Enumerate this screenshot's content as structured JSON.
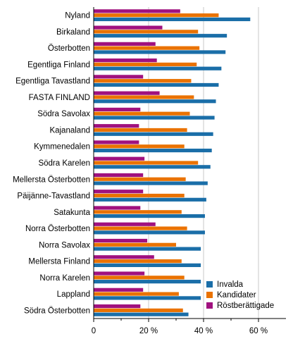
{
  "chart_data": {
    "type": "bar",
    "orientation": "horizontal",
    "title": "",
    "xlabel": "",
    "ylabel": "",
    "categories": [
      "Nyland",
      "Birkaland",
      "Österbotten",
      "Egentliga Finland",
      "Egentliga Tavastland",
      "FASTA FINLAND",
      "Södra Savolax",
      "Kajanaland",
      "Kymmenedalen",
      "Södra Karelen",
      "Mellersta Österbotten",
      "Päijänne-Tavastland",
      "Satakunta",
      "Norra Österbotten",
      "Norra Savolax",
      "Mellersta Finland",
      "Norra Karelen",
      "Lappland",
      "Södra Österbotten"
    ],
    "series": [
      {
        "name": "Röstberättigade",
        "color": "#a0117f",
        "values": [
          31.5,
          25,
          22.5,
          23,
          18,
          24,
          17,
          16.5,
          16.5,
          18.5,
          18,
          18,
          17,
          22.5,
          19.5,
          22,
          18.5,
          18,
          17
        ]
      },
      {
        "name": "Kandidater",
        "color": "#ea7200",
        "values": [
          45.5,
          38,
          38.5,
          37.5,
          35.5,
          36.5,
          35,
          34,
          33,
          38,
          33.5,
          33,
          32,
          34,
          30,
          32,
          33,
          31,
          32.5
        ]
      },
      {
        "name": "Invalda",
        "color": "#1a6ea8",
        "values": [
          57,
          48.5,
          48,
          46.5,
          45.5,
          44.5,
          44,
          43.5,
          43,
          42.5,
          41.5,
          41,
          40.5,
          40.5,
          39,
          39,
          39,
          39,
          34.5
        ]
      }
    ],
    "xlim": [
      0,
      70
    ],
    "xticks": [
      0,
      20,
      40,
      60
    ],
    "xtick_labels": [
      "0",
      "20 %",
      "40 %",
      "60 %"
    ],
    "grid": true,
    "legend": {
      "position": "bottom-right",
      "order": [
        "Invalda",
        "Kandidater",
        "Röstberättigade"
      ]
    }
  }
}
